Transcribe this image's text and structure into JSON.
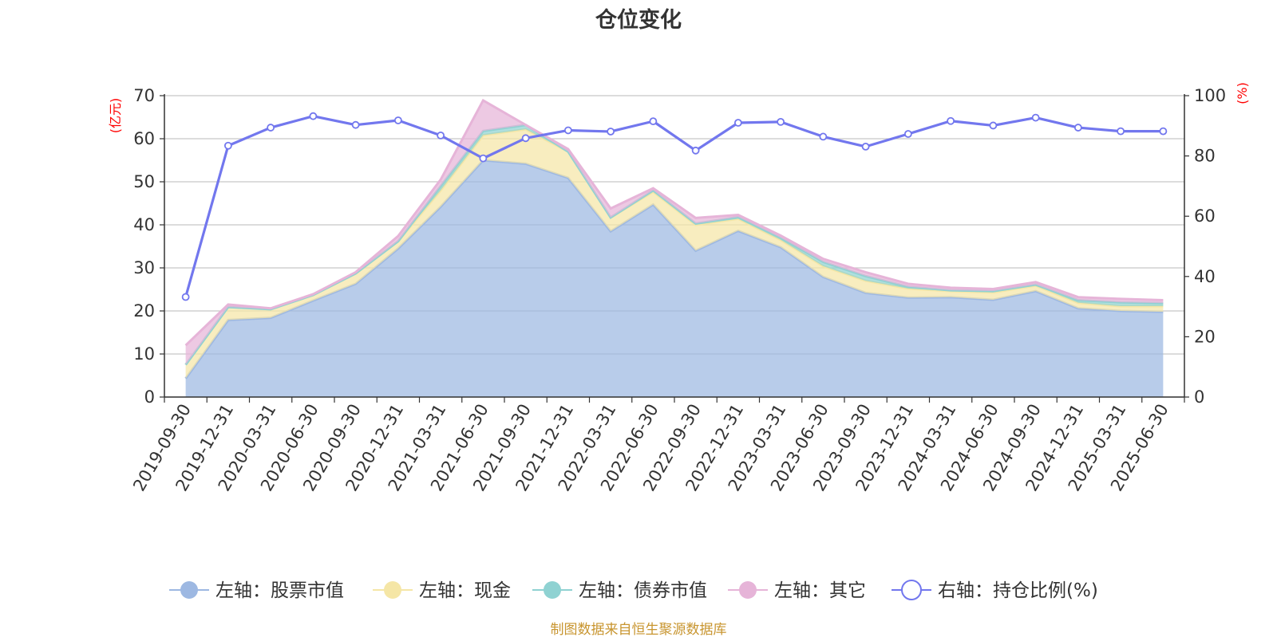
{
  "chart_data": {
    "type": "area",
    "title": "仓位变化",
    "y_left_unit": "(亿元)",
    "y_right_unit": "(%)",
    "ylim_left": [
      0,
      70
    ],
    "ylim_right": [
      0,
      100
    ],
    "y_left_ticks": [
      "0",
      "10",
      "20",
      "30",
      "40",
      "50",
      "60",
      "70"
    ],
    "y_right_ticks": [
      "0",
      "20",
      "40",
      "60",
      "80",
      "100"
    ],
    "grid": true,
    "legend_position": "bottom",
    "categories": [
      "2019-09-30",
      "2019-12-31",
      "2020-03-31",
      "2020-06-30",
      "2020-09-30",
      "2020-12-31",
      "2021-03-31",
      "2021-06-30",
      "2021-09-30",
      "2021-12-31",
      "2022-03-31",
      "2022-06-30",
      "2022-09-30",
      "2022-12-31",
      "2023-03-31",
      "2023-06-30",
      "2023-09-30",
      "2023-12-31",
      "2024-03-31",
      "2024-06-30",
      "2024-09-30",
      "2024-12-31",
      "2025-03-31",
      "2025-06-30"
    ],
    "series": [
      {
        "name": "左轴：股票市值",
        "axis": "left",
        "kind": "stacked-area",
        "color": "#9db8e2",
        "values": [
          4.3,
          17.9,
          18.4,
          22.4,
          26.3,
          34.5,
          44.2,
          55.0,
          54.2,
          50.9,
          38.5,
          44.7,
          34.0,
          38.6,
          34.8,
          27.9,
          24.2,
          23.1,
          23.2,
          22.6,
          24.6,
          20.6,
          20.0,
          19.8
        ]
      },
      {
        "name": "左轴：现金",
        "axis": "left",
        "kind": "stacked-area",
        "color": "#f5e6a6",
        "values": [
          3.2,
          3.0,
          2.0,
          1.3,
          2.4,
          1.7,
          3.8,
          5.8,
          8.0,
          6.1,
          3.2,
          3.0,
          6.0,
          2.8,
          1.7,
          2.5,
          2.8,
          2.1,
          1.4,
          1.7,
          1.3,
          1.3,
          1.1,
          1.3
        ]
      },
      {
        "name": "左轴：债券市值",
        "axis": "left",
        "kind": "stacked-area",
        "color": "#8fd2d2",
        "values": [
          0.0,
          0.0,
          0.0,
          0.0,
          0.0,
          0.0,
          1.0,
          1.0,
          1.0,
          0.0,
          0.0,
          0.3,
          0.3,
          0.4,
          0.5,
          1.0,
          1.1,
          0.4,
          0.2,
          0.3,
          0.2,
          0.6,
          0.9,
          0.7
        ]
      },
      {
        "name": "左轴：其它",
        "axis": "left",
        "kind": "stacked-area",
        "color": "#e6b4d8",
        "values": [
          4.5,
          0.6,
          0.2,
          0.2,
          0.3,
          1.2,
          1.5,
          7.1,
          0.0,
          0.6,
          2.1,
          0.5,
          1.3,
          0.5,
          0.5,
          0.7,
          0.9,
          0.7,
          0.6,
          0.5,
          0.6,
          0.7,
          0.8,
          0.7
        ]
      },
      {
        "name": "右轴：持仓比例(%)",
        "axis": "right",
        "kind": "line",
        "color": "#7277ee",
        "values": [
          33.2,
          83.4,
          89.4,
          93.2,
          90.3,
          91.8,
          86.8,
          79.2,
          85.9,
          88.5,
          88.1,
          91.5,
          81.8,
          91.0,
          91.3,
          86.4,
          83.1,
          87.3,
          91.6,
          90.1,
          92.7,
          89.4,
          88.2,
          88.2
        ]
      }
    ],
    "source_note": "制图数据来自恒生聚源数据库"
  }
}
